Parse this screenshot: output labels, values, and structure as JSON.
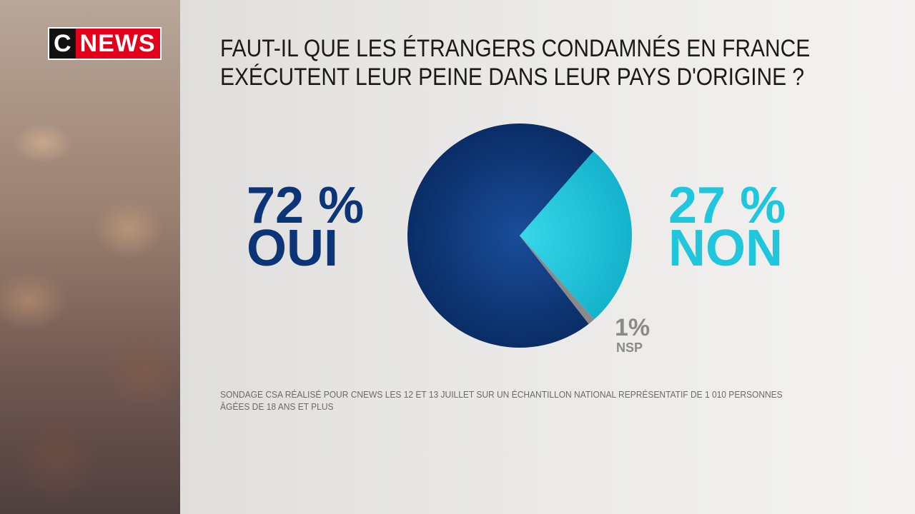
{
  "logo": {
    "left": "C",
    "right": "NEWS"
  },
  "chart_data": {
    "type": "pie",
    "title": "FAUT-IL QUE LES ÉTRANGERS CONDAMNÉS EN FRANCE EXÉCUTENT LEUR PEINE DANS LEUR PAYS D'ORIGINE ?",
    "categories": [
      "OUI",
      "NON",
      "NSP"
    ],
    "values": [
      72,
      27,
      1
    ],
    "value_labels": [
      "72 %",
      "27 %",
      "1%"
    ],
    "colors": [
      "#0c3578",
      "#1fc6dc",
      "#8a8a8a"
    ],
    "source": "SONDAGE CSA RÉALISÉ POUR CNEWS LES 12 ET 13 JUILLET SUR UN ÉCHANTILLON NATIONAL REPRÉSENTATIF DE 1 010 PERSONNES ÂGÉES DE 18 ANS ET PLUS"
  }
}
